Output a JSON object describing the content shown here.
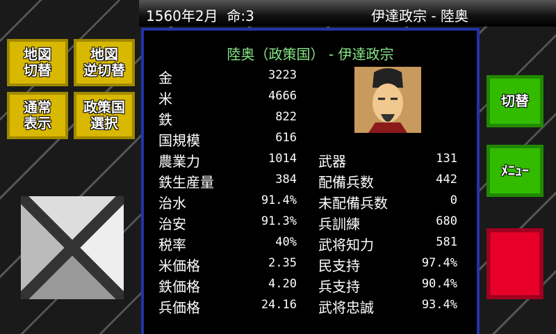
{
  "topbar": {
    "date": "1560年2月",
    "lives": "命:3",
    "daimyo": "伊達政宗 - 陸奥"
  },
  "panel": {
    "title": "陸奥（政策国） - 伊達政宗",
    "left": [
      {
        "label": "金",
        "value": "3223"
      },
      {
        "label": "米",
        "value": "4666"
      },
      {
        "label": "鉄",
        "value": "822"
      },
      {
        "label": "国規模",
        "value": "616"
      },
      {
        "label": "農業力",
        "value": "1014"
      },
      {
        "label": "鉄生産量",
        "value": "384"
      },
      {
        "label": "治水",
        "value": "91.4%"
      },
      {
        "label": "治安",
        "value": "91.3%"
      },
      {
        "label": "税率",
        "value": "40%"
      },
      {
        "label": "米価格",
        "value": "2.35"
      },
      {
        "label": "鉄価格",
        "value": "4.20"
      },
      {
        "label": "兵価格",
        "value": "24.16"
      }
    ],
    "right": [
      {
        "label": "武器",
        "value": "131"
      },
      {
        "label": "配備兵数",
        "value": "442"
      },
      {
        "label": "未配備兵数",
        "value": "0"
      },
      {
        "label": "兵訓練",
        "value": "680"
      },
      {
        "label": "武将知力",
        "value": "581"
      },
      {
        "label": "民支持",
        "value": "97.4%"
      },
      {
        "label": "兵支持",
        "value": "90.4%"
      },
      {
        "label": "武将忠誠",
        "value": "93.4%"
      }
    ]
  },
  "buttons": {
    "map_switch": "地図\n切替",
    "map_reverse": "地図\n逆切替",
    "normal_view": "通常\n表示",
    "policy_select": "政策国\n選択",
    "switch": "切替",
    "menu": "ﾒﾆｭｰ"
  }
}
